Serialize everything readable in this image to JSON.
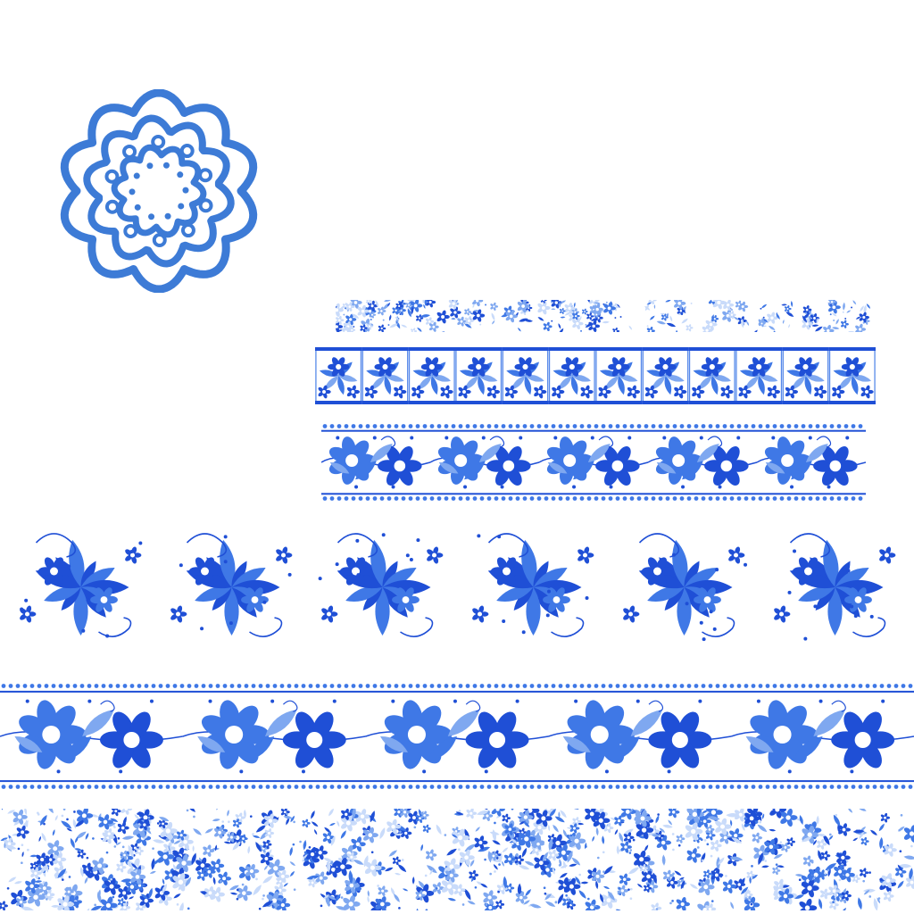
{
  "canvas": {
    "background": "#ffffff"
  },
  "palette": {
    "deep_blue": "#1f4fd6",
    "mid_blue": "#3f78e6",
    "light_blue": "#7fa8f0",
    "pale_blue": "#c9dbfa",
    "rosette_blue": "#3d7bd6"
  },
  "elements": [
    {
      "name": "rosette-medallion",
      "kind": "lace rosette",
      "color_ref": "rosette_blue"
    },
    {
      "name": "thin-pattern-strip",
      "kind": "fine seamless pattern band"
    },
    {
      "name": "tile-border-strip",
      "kind": "repeating square floral tiles",
      "tiles": 12
    },
    {
      "name": "bellflower-border-strip",
      "kind": "flower band with beaded edges",
      "repeats": 5
    },
    {
      "name": "flourish-motif-row",
      "kind": "separate floral sprays",
      "motifs": 6
    },
    {
      "name": "wide-bellflower-border",
      "kind": "wide flower band with beaded edges",
      "repeats": 5
    },
    {
      "name": "dense-pattern-band",
      "kind": "dense seamless floral pattern"
    }
  ]
}
